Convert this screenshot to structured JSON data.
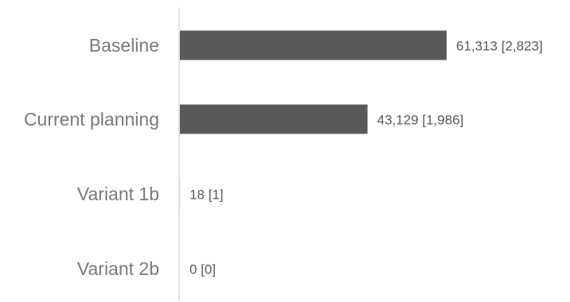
{
  "chart_data": {
    "type": "bar",
    "orientation": "horizontal",
    "categories": [
      "Baseline",
      "Current planning",
      "Variant 1b",
      "Variant 2b"
    ],
    "values": [
      61313,
      43129,
      18,
      0
    ],
    "data_labels": [
      "61,313 [2,823]",
      "43,129 [1,986]",
      "18 [1]",
      "0 [0]"
    ],
    "title": "",
    "xlabel": "",
    "ylabel": "",
    "grid": false,
    "legend": "none",
    "colors": {
      "bar": "#595959",
      "axis": "#d9d9d9",
      "category_text": "#7a7a7a",
      "value_text": "#595959"
    }
  }
}
